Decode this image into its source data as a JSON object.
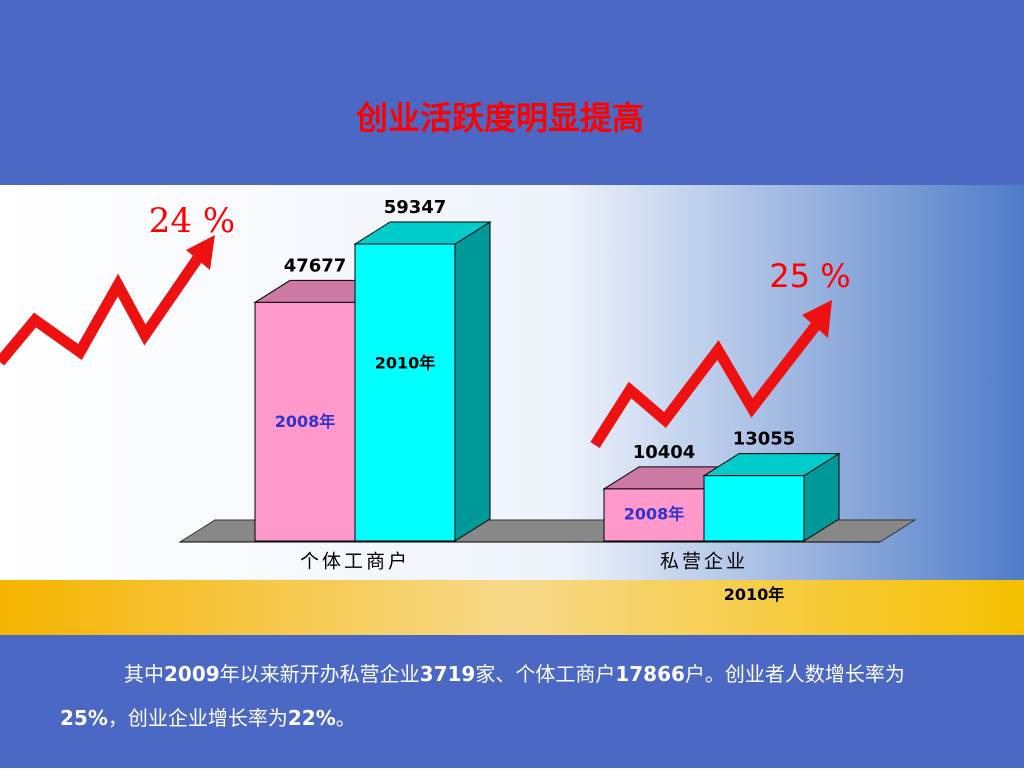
{
  "chart_data": {
    "type": "bar3d",
    "title": "创业活跃度明显提高",
    "categories": [
      "个体工商户",
      "私营企业"
    ],
    "series": [
      {
        "name": "2008年",
        "color": "#ff99cc",
        "label_color": "#3333cc",
        "values": [
          47677,
          10404
        ]
      },
      {
        "name": "2010年",
        "color": "#00ffff",
        "label_color": "#000000",
        "values": [
          59347,
          13055
        ]
      }
    ],
    "annotations": [
      "24 %",
      "25 %"
    ],
    "paragraph": [
      "其中",
      "2009",
      "年以来新开办私营企业",
      "3719",
      "家、个体工商户",
      "17866",
      "户。创业者人数增长率为",
      "25%",
      "，创业企业增长率为",
      "22%",
      "。"
    ]
  }
}
